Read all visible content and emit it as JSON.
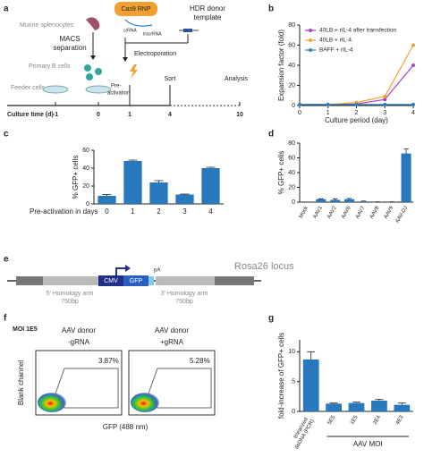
{
  "panel_labels": [
    "a",
    "b",
    "c",
    "d",
    "e",
    "f",
    "g"
  ],
  "schematic": {
    "cas9": "Cas9 RNP",
    "crrna": "crRNA",
    "tracrrna": "tracrRNA",
    "hdr_line1": "HDR donor",
    "hdr_line2": "template",
    "splenocytes": "Murine splenocytes",
    "macs_line1": "MACS",
    "macs_line2": "separation",
    "b_cells": "Primary B cells",
    "electroporation": "Electroporation",
    "feeder": "Feeder cells",
    "preactivation_line1": "Pre-",
    "preactivation_line2": "activation",
    "sort": "Sort",
    "analysis": "Analysis",
    "timeline_label": "Culture time (d)",
    "timeline_ticks": [
      "-1",
      "0",
      "1",
      "4",
      "10"
    ]
  },
  "construct": {
    "cmv": "CMV",
    "gfp": "GFP",
    "pa": "pA",
    "locus": "Rosa26 locus",
    "arm5": "5' Homology arm",
    "arm5_size": "750bp",
    "arm3": "3' Homology arm",
    "arm3_size": "750bp"
  },
  "flow": {
    "moi": "MOI 1E5",
    "ylabel": "Blank channel",
    "xlabel": "GFP (488 nm)",
    "plots": [
      {
        "title1": "AAV donor",
        "title2": "-gRNA",
        "gate": "3.87%"
      },
      {
        "title1": "AAV donor",
        "title2": "+gRNA",
        "gate": "5.28%"
      }
    ]
  },
  "chart_data": [
    {
      "type": "line",
      "ylabel": "Expansion factor (fold)",
      "xlabel": "Culture period (day)",
      "x": [
        0,
        1,
        2,
        3,
        4
      ],
      "xlim": [
        0,
        4
      ],
      "xticks": [
        0,
        1,
        2,
        3,
        4
      ],
      "ylim": [
        0,
        80
      ],
      "yticks": [
        0,
        20,
        40,
        60,
        80
      ],
      "series": [
        {
          "name": "40LB + rIL-4 after transfection",
          "color": "#b03fc2",
          "values": [
            1,
            1,
            1.5,
            6,
            40
          ]
        },
        {
          "name": "40LB + rIL-4",
          "color": "#f0a030",
          "values": [
            1,
            1,
            3,
            9,
            60
          ]
        },
        {
          "name": "BAFF + rIL-4",
          "color": "#2a7fc0",
          "values": [
            1,
            1,
            1,
            1,
            1
          ]
        }
      ]
    },
    {
      "type": "bar",
      "ylabel": "% GFP+ cells",
      "xlabel": "Pre-activation in days",
      "color": "#2878bd",
      "categories": [
        "0",
        "1",
        "2",
        "3",
        "4"
      ],
      "values": [
        9,
        48,
        24,
        10.5,
        40
      ],
      "errors": [
        1.5,
        1,
        2,
        0.5,
        1
      ],
      "ylim": [
        0,
        60
      ],
      "yticks": [
        0,
        20,
        40,
        60
      ]
    },
    {
      "type": "bar",
      "ylabel": "% GFP+ cells",
      "color": "#2878bd",
      "categories": [
        "Mock",
        "AAV1",
        "AAV2",
        "AAV6",
        "AAV7",
        "AAV8",
        "AAV9",
        "AAV-DJ"
      ],
      "values": [
        0,
        4,
        3,
        4,
        1,
        0.3,
        0.3,
        66
      ],
      "errors": [
        0,
        0.5,
        1.5,
        1,
        0.5,
        0.2,
        0.2,
        6
      ],
      "ylim": [
        0,
        80
      ],
      "yticks": [
        0,
        20,
        40,
        60,
        80
      ]
    },
    {
      "type": "bar",
      "ylabel": "fold-increase of GFP+ cells",
      "xlabel": "AAV MOI",
      "color": "#2878bd",
      "categories": [
        "linearized dsDNA (PCR)",
        "5E5",
        "1E5",
        "2E4",
        "4E3"
      ],
      "values": [
        8.7,
        1.3,
        1.4,
        1.8,
        1.1
      ],
      "errors": [
        1.3,
        0.1,
        0.15,
        0.2,
        0.3
      ],
      "ylim": [
        0,
        12
      ],
      "yticks": [
        0,
        5,
        10
      ]
    }
  ]
}
